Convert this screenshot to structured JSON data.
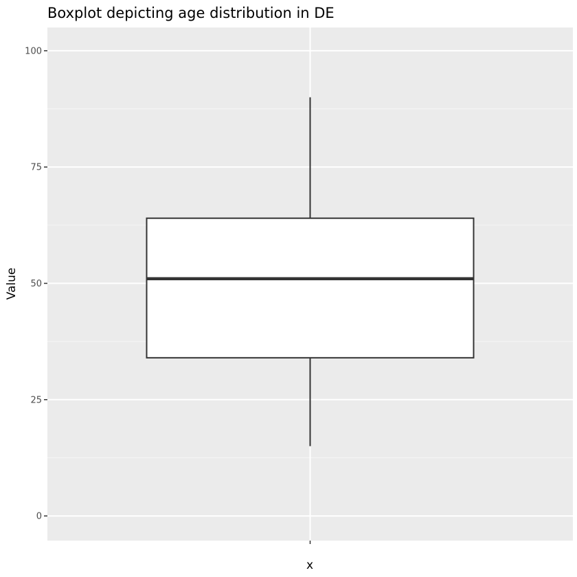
{
  "chart_data": {
    "type": "boxplot",
    "title": "Boxplot depicting age distribution in DE",
    "xlabel": "x",
    "ylabel": "Value",
    "ylim": [
      -5.3,
      105
    ],
    "y_ticks": [
      0,
      25,
      50,
      75,
      100
    ],
    "y_tick_labels": [
      "0",
      "25",
      "50",
      "75",
      "100"
    ],
    "grid": true,
    "legend": "none",
    "box": {
      "whisker_low": 15,
      "q1": 34,
      "median": 51,
      "q3": 64,
      "whisker_high": 90
    },
    "colors": {
      "panel_background": "#ebebeb",
      "grid_major": "#ffffff",
      "grid_minor": "#f5f5f5",
      "box_fill": "#ffffff",
      "box_line": "#333333",
      "tick_text": "#4d4d4d"
    }
  }
}
